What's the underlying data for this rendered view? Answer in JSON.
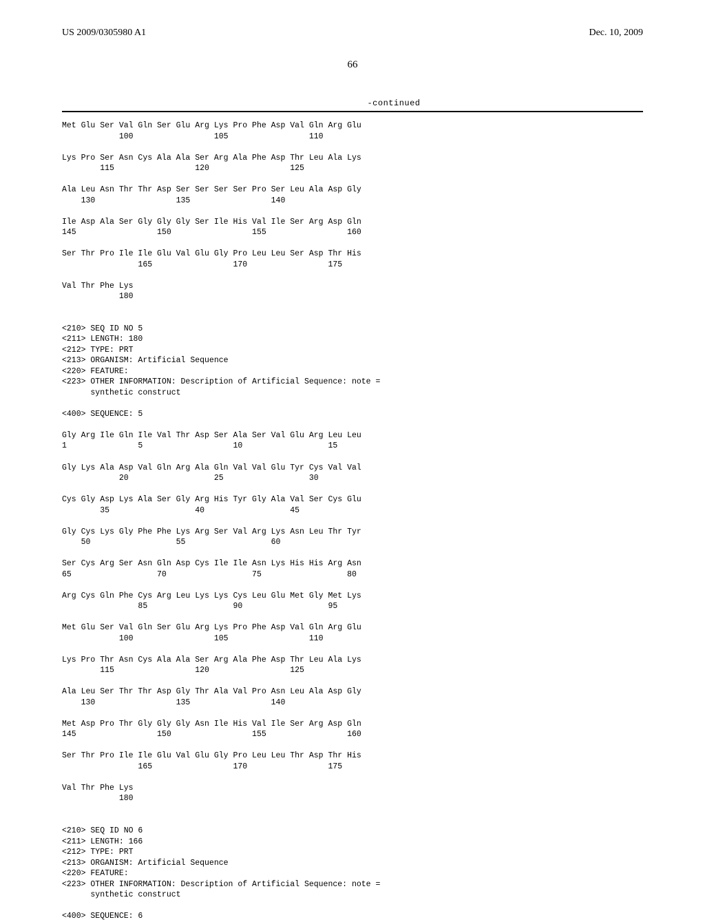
{
  "header": {
    "publication_number": "US 2009/0305980 A1",
    "publication_date": "Dec. 10, 2009",
    "page_number": "66",
    "continued_label": "-continued"
  },
  "seq4_tail": {
    "rows": [
      {
        "aa": "Met Glu Ser Val Gln Ser Glu Arg Lys Pro Phe Asp Val Gln Arg Glu",
        "nums": "            100                 105                 110"
      },
      {
        "aa": "Lys Pro Ser Asn Cys Ala Ala Ser Arg Ala Phe Asp Thr Leu Ala Lys",
        "nums": "        115                 120                 125"
      },
      {
        "aa": "Ala Leu Asn Thr Thr Asp Ser Ser Ser Ser Pro Ser Leu Ala Asp Gly",
        "nums": "    130                 135                 140"
      },
      {
        "aa": "Ile Asp Ala Ser Gly Gly Gly Ser Ile His Val Ile Ser Arg Asp Gln",
        "nums": "145                 150                 155                 160"
      },
      {
        "aa": "Ser Thr Pro Ile Ile Glu Val Glu Gly Pro Leu Leu Ser Asp Thr His",
        "nums": "                165                 170                 175"
      },
      {
        "aa": "Val Thr Phe Lys",
        "nums": "            180"
      }
    ]
  },
  "seq5_header": {
    "lines": [
      "<210> SEQ ID NO 5",
      "<211> LENGTH: 180",
      "<212> TYPE: PRT",
      "<213> ORGANISM: Artificial Sequence",
      "<220> FEATURE:",
      "<223> OTHER INFORMATION: Description of Artificial Sequence: note =",
      "      synthetic construct",
      "",
      "<400> SEQUENCE: 5"
    ]
  },
  "seq5": {
    "rows": [
      {
        "aa": "Gly Arg Ile Gln Ile Val Thr Asp Ser Ala Ser Val Glu Arg Leu Leu",
        "nums": "1               5                   10                  15"
      },
      {
        "aa": "Gly Lys Ala Asp Val Gln Arg Ala Gln Val Val Glu Tyr Cys Val Val",
        "nums": "            20                  25                  30"
      },
      {
        "aa": "Cys Gly Asp Lys Ala Ser Gly Arg His Tyr Gly Ala Val Ser Cys Glu",
        "nums": "        35                  40                  45"
      },
      {
        "aa": "Gly Cys Lys Gly Phe Phe Lys Arg Ser Val Arg Lys Asn Leu Thr Tyr",
        "nums": "    50                  55                  60"
      },
      {
        "aa": "Ser Cys Arg Ser Asn Gln Asp Cys Ile Ile Asn Lys His His Arg Asn",
        "nums": "65                  70                  75                  80"
      },
      {
        "aa": "Arg Cys Gln Phe Cys Arg Leu Lys Lys Cys Leu Glu Met Gly Met Lys",
        "nums": "                85                  90                  95"
      },
      {
        "aa": "Met Glu Ser Val Gln Ser Glu Arg Lys Pro Phe Asp Val Gln Arg Glu",
        "nums": "            100                 105                 110"
      },
      {
        "aa": "Lys Pro Thr Asn Cys Ala Ala Ser Arg Ala Phe Asp Thr Leu Ala Lys",
        "nums": "        115                 120                 125"
      },
      {
        "aa": "Ala Leu Ser Thr Thr Asp Gly Thr Ala Val Pro Asn Leu Ala Asp Gly",
        "nums": "    130                 135                 140"
      },
      {
        "aa": "Met Asp Pro Thr Gly Gly Gly Asn Ile His Val Ile Ser Arg Asp Gln",
        "nums": "145                 150                 155                 160"
      },
      {
        "aa": "Ser Thr Pro Ile Ile Glu Val Glu Gly Pro Leu Leu Thr Asp Thr His",
        "nums": "                165                 170                 175"
      },
      {
        "aa": "Val Thr Phe Lys",
        "nums": "            180"
      }
    ]
  },
  "seq6_header": {
    "lines": [
      "<210> SEQ ID NO 6",
      "<211> LENGTH: 166",
      "<212> TYPE: PRT",
      "<213> ORGANISM: Artificial Sequence",
      "<220> FEATURE:",
      "<223> OTHER INFORMATION: Description of Artificial Sequence: note =",
      "      synthetic construct",
      "",
      "<400> SEQUENCE: 6"
    ]
  }
}
